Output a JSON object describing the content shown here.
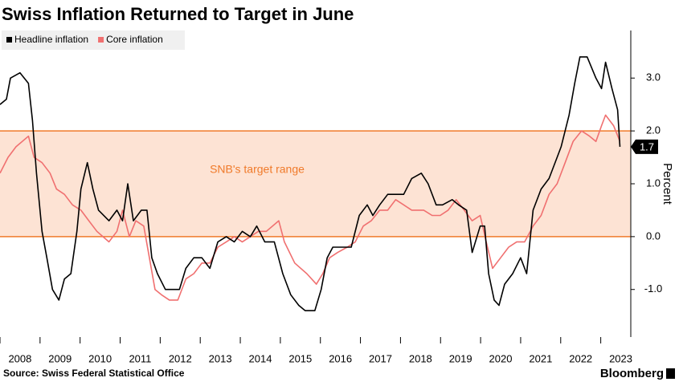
{
  "chart_data": {
    "type": "line",
    "title": "Swiss Inflation Returned to Target in June",
    "source": "Source: Swiss Federal Statistical Office",
    "brand": "Bloomberg",
    "y_label": "Percent",
    "annotation": "SNB's target range",
    "target_range": [
      0,
      2
    ],
    "target_color": "#f07a2a",
    "xlim": [
      2008.0,
      2023.75
    ],
    "xticks": [
      2008,
      2009,
      2010,
      2011,
      2012,
      2013,
      2014,
      2015,
      2016,
      2017,
      2018,
      2019,
      2020,
      2021,
      2022,
      2023
    ],
    "ylim": [
      -1.9,
      3.9
    ],
    "yticks": [
      {
        "value": -1,
        "label": "-1.0"
      },
      {
        "value": 0,
        "label": "0.0"
      },
      {
        "value": 1,
        "label": "1.0"
      },
      {
        "value": 2,
        "label": "2.0"
      },
      {
        "value": 3,
        "label": "3.0"
      }
    ],
    "legend": "top-left",
    "series": [
      {
        "name": "Headline inflation",
        "color": "#000000",
        "x": [
          2008.0,
          2008.16,
          2008.26,
          2008.5,
          2008.71,
          2008.81,
          2008.91,
          2009.05,
          2009.17,
          2009.31,
          2009.47,
          2009.61,
          2009.77,
          2009.92,
          2010.02,
          2010.18,
          2010.32,
          2010.46,
          2010.72,
          2010.92,
          2011.06,
          2011.19,
          2011.33,
          2011.53,
          2011.67,
          2011.79,
          2011.93,
          2012.13,
          2012.33,
          2012.48,
          2012.64,
          2012.84,
          2013.04,
          2013.24,
          2013.44,
          2013.65,
          2013.85,
          2014.05,
          2014.25,
          2014.41,
          2014.61,
          2014.85,
          2015.06,
          2015.26,
          2015.46,
          2015.62,
          2015.86,
          2016.02,
          2016.17,
          2016.31,
          2016.57,
          2016.77,
          2016.97,
          2017.17,
          2017.31,
          2017.48,
          2017.68,
          2017.88,
          2018.08,
          2018.28,
          2018.52,
          2018.69,
          2018.89,
          2019.05,
          2019.29,
          2019.45,
          2019.65,
          2019.79,
          2019.99,
          2020.1,
          2020.2,
          2020.34,
          2020.46,
          2020.6,
          2020.8,
          2021.0,
          2021.15,
          2021.31,
          2021.51,
          2021.71,
          2021.91,
          2022.01,
          2022.21,
          2022.35,
          2022.48,
          2022.66,
          2022.88,
          2023.02,
          2023.12,
          2023.28,
          2023.42,
          2023.48
        ],
        "values": [
          2.5,
          2.6,
          3.0,
          3.1,
          2.9,
          2.2,
          1.2,
          0.1,
          -0.4,
          -1.0,
          -1.2,
          -0.8,
          -0.7,
          0.1,
          0.9,
          1.4,
          0.9,
          0.5,
          0.3,
          0.5,
          0.3,
          1.0,
          0.3,
          0.5,
          0.5,
          -0.4,
          -0.7,
          -1.0,
          -1.0,
          -1.0,
          -0.6,
          -0.4,
          -0.4,
          -0.6,
          -0.1,
          0.0,
          -0.1,
          0.1,
          0.0,
          0.2,
          -0.1,
          -0.1,
          -0.7,
          -1.1,
          -1.3,
          -1.4,
          -1.4,
          -1.0,
          -0.4,
          -0.2,
          -0.2,
          -0.2,
          0.4,
          0.6,
          0.4,
          0.6,
          0.8,
          0.8,
          0.8,
          1.1,
          1.2,
          1.0,
          0.6,
          0.6,
          0.7,
          0.6,
          0.5,
          -0.3,
          0.2,
          0.2,
          -0.7,
          -1.2,
          -1.3,
          -0.9,
          -0.7,
          -0.4,
          -0.7,
          0.5,
          0.9,
          1.1,
          1.5,
          1.7,
          2.3,
          2.9,
          3.4,
          3.4,
          3.0,
          2.8,
          3.3,
          2.8,
          2.4,
          1.7
        ]
      },
      {
        "name": "Core inflation",
        "color": "#f07070",
        "x": [
          2008.0,
          2008.2,
          2008.4,
          2008.71,
          2008.85,
          2009.05,
          2009.25,
          2009.41,
          2009.61,
          2009.81,
          2010.02,
          2010.22,
          2010.42,
          2010.72,
          2010.92,
          2011.06,
          2011.23,
          2011.39,
          2011.59,
          2011.73,
          2011.87,
          2012.03,
          2012.23,
          2012.44,
          2012.64,
          2012.84,
          2013.04,
          2013.24,
          2013.44,
          2013.65,
          2013.85,
          2014.05,
          2014.25,
          2014.45,
          2014.65,
          2014.96,
          2015.1,
          2015.36,
          2015.66,
          2015.9,
          2016.06,
          2016.23,
          2016.43,
          2016.67,
          2016.87,
          2017.07,
          2017.27,
          2017.48,
          2017.68,
          2017.88,
          2018.08,
          2018.28,
          2018.58,
          2018.79,
          2018.99,
          2019.19,
          2019.39,
          2019.59,
          2019.79,
          2019.99,
          2020.14,
          2020.3,
          2020.5,
          2020.7,
          2020.9,
          2021.1,
          2021.31,
          2021.51,
          2021.71,
          2021.91,
          2022.11,
          2022.31,
          2022.52,
          2022.72,
          2022.88,
          2023.02,
          2023.12,
          2023.32,
          2023.48
        ],
        "values": [
          1.2,
          1.5,
          1.7,
          1.9,
          1.5,
          1.4,
          1.2,
          0.9,
          0.8,
          0.6,
          0.5,
          0.3,
          0.1,
          -0.1,
          0.1,
          0.5,
          0.0,
          0.3,
          0.2,
          -0.4,
          -1.0,
          -1.1,
          -1.2,
          -1.2,
          -0.8,
          -0.7,
          -0.5,
          -0.5,
          -0.2,
          -0.1,
          0.0,
          -0.1,
          0.0,
          0.1,
          0.1,
          0.3,
          -0.1,
          -0.5,
          -0.7,
          -0.9,
          -0.7,
          -0.4,
          -0.3,
          -0.2,
          -0.1,
          0.2,
          0.3,
          0.5,
          0.5,
          0.7,
          0.6,
          0.5,
          0.5,
          0.4,
          0.4,
          0.5,
          0.7,
          0.5,
          0.3,
          0.4,
          -0.1,
          -0.6,
          -0.4,
          -0.2,
          -0.1,
          -0.1,
          0.2,
          0.4,
          0.8,
          1.0,
          1.4,
          1.8,
          2.0,
          1.9,
          1.8,
          2.1,
          2.3,
          2.1,
          1.8
        ]
      }
    ]
  }
}
